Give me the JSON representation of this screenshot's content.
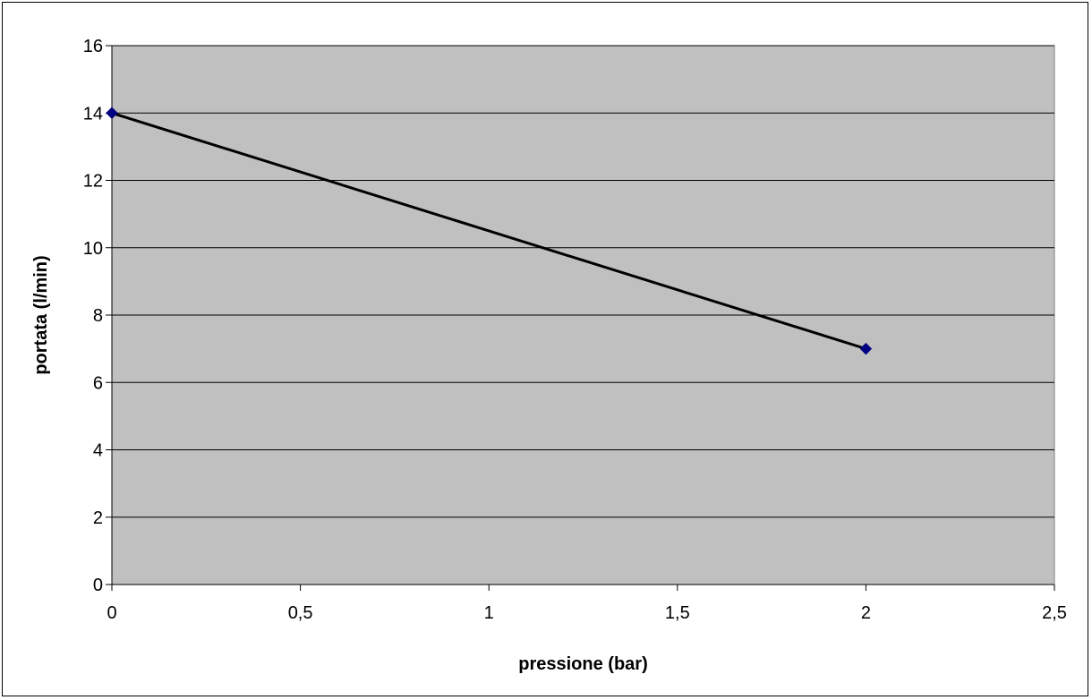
{
  "chart_data": {
    "type": "scatter",
    "title": "",
    "xlabel": "pressione (bar)",
    "ylabel": "portata (l/min)",
    "xlim": [
      0,
      2.5
    ],
    "ylim": [
      0,
      16
    ],
    "x_ticks": [
      "0",
      "0,5",
      "1",
      "1,5",
      "2",
      "2,5"
    ],
    "y_ticks": [
      "0",
      "2",
      "4",
      "6",
      "8",
      "10",
      "12",
      "14",
      "16"
    ],
    "grid": "horizontal",
    "legend": "none",
    "plot_background": "#c0c0c0",
    "line_color": "#000000",
    "marker_color": "#000080",
    "marker": "diamond",
    "series": [
      {
        "x": [
          0,
          2
        ],
        "y": [
          14,
          7
        ]
      }
    ]
  }
}
